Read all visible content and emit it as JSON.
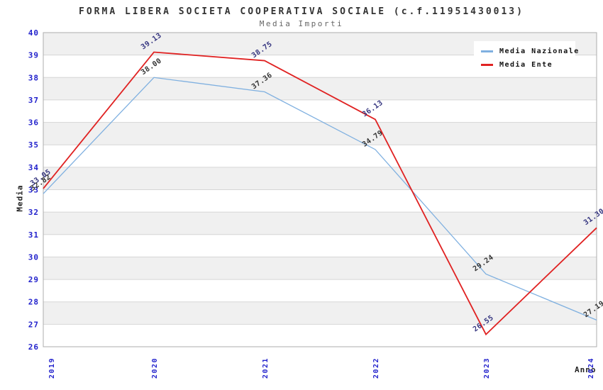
{
  "window": {
    "title": "FORMA LIBERA SOCIETA COOPERATIVA SOCIALE (c.f.11951430013)",
    "subtitle": "Media Importi"
  },
  "axes": {
    "x_label": "Anno",
    "y_label": "Media"
  },
  "legend": {
    "position": "top-right",
    "items": [
      {
        "label": "Media Nazionale",
        "color": "#7FB0E0"
      },
      {
        "label": "Media Ente",
        "color": "#E02222"
      }
    ]
  },
  "chart_data": {
    "type": "line",
    "title": "FORMA LIBERA SOCIETA COOPERATIVA SOCIALE (c.f.11951430013)",
    "subtitle": "Media Importi",
    "x": [
      "2019",
      "2020",
      "2021",
      "2022",
      "2023",
      "2024"
    ],
    "series": [
      {
        "name": "Media Nazionale",
        "color": "#7FB0E0",
        "label_color": "#333333",
        "values": [
          32.82,
          38.0,
          37.36,
          34.79,
          29.24,
          27.19
        ]
      },
      {
        "name": "Media Ente",
        "color": "#E02222",
        "label_color": "#353580",
        "values": [
          33.05,
          39.13,
          38.75,
          36.13,
          26.55,
          31.3
        ]
      }
    ],
    "xlabel": "Anno",
    "ylabel": "Media",
    "ylim": [
      26,
      40
    ],
    "y_tick_step": 1,
    "x_tick_rotation_deg": -90,
    "data_label_rotation_deg": -35,
    "data_label_decimals": 2,
    "grid": true,
    "alternating_bands": true,
    "legend_position": "top-right",
    "tick_label_color": "#2222CC",
    "grid_color": "#D6D6D6",
    "band_color": "#F0F0F0",
    "plot_border_color": "#ADADAD"
  }
}
